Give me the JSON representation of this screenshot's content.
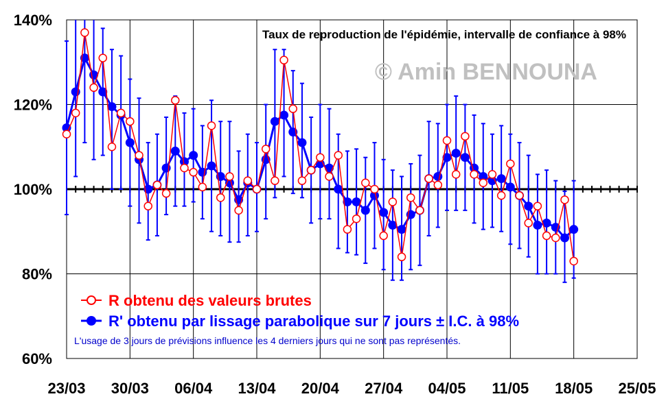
{
  "chart_data": {
    "type": "line",
    "title": "Taux de reproduction de l'épidémie, intervalle de confiance à 98%",
    "watermark": "© Amin BENNOUNA",
    "y_unit": "%",
    "ylim": [
      60,
      140
    ],
    "yticks": [
      "60%",
      "80%",
      "100%",
      "120%",
      "140%"
    ],
    "ytick_values": [
      60,
      80,
      100,
      120,
      140
    ],
    "x_start_date": "2020-03-23",
    "xticks": [
      "23/03",
      "30/03",
      "06/04",
      "13/04",
      "20/04",
      "27/04",
      "04/05",
      "11/05",
      "18/05",
      "25/05"
    ],
    "xlim": [
      "2020-03-23",
      "2020-05-25"
    ],
    "reference_line": 100,
    "grid": true,
    "legend_position": "bottom-left",
    "legend": {
      "raw_label": "R obtenu des valeurs brutes",
      "smooth_label": "R' obtenu par lissage parabolique sur 7 jours ± I.C. à 98%",
      "note": "L'usage de 3 jours de prévisions influence les 4 derniers jours qui ne sont pas représentés."
    },
    "colors": {
      "raw": "#ff0000",
      "smooth": "#0000ff",
      "reference": "#000000",
      "grid": "#000000"
    },
    "series": [
      {
        "name": "R obtenu des valeurs brutes",
        "values": [
          113,
          118,
          137,
          124,
          131,
          110,
          118,
          116,
          108,
          96,
          101,
          99,
          121,
          105,
          104,
          100.5,
          115,
          98,
          103,
          95,
          102,
          100,
          109.5,
          102,
          130.5,
          119,
          102,
          104.5,
          107.5,
          103,
          108,
          90.5,
          93,
          101.5,
          100,
          89,
          97,
          84,
          98,
          95,
          102.5,
          101,
          111.5,
          103.5,
          112.5,
          103.5,
          101.5,
          103.5,
          98.5,
          106,
          98.5,
          92,
          96,
          89,
          88.5,
          97.5,
          83
        ]
      },
      {
        "name": "R' obtenu par lissage parabolique sur 7 jours ± I.C. à 98%",
        "values": [
          114.5,
          123,
          131,
          127,
          123,
          119.5,
          117.5,
          111,
          107,
          100,
          101,
          105,
          109,
          106.5,
          108,
          104,
          105.5,
          103,
          101.5,
          97.5,
          101.5,
          100,
          107,
          116,
          117.5,
          113.5,
          111,
          104.5,
          106,
          105,
          100,
          97,
          97,
          95,
          98.5,
          94.5,
          91.5,
          90.5,
          94,
          95,
          102.5,
          103,
          107.5,
          108.5,
          107.5,
          105,
          103,
          102,
          102.5,
          100.5,
          98.5,
          96,
          91.5,
          92,
          91,
          88.5,
          90.5
        ],
        "ci_low": [
          94,
          103,
          111,
          107,
          108,
          100,
          100,
          96,
          92,
          88,
          89,
          94,
          96,
          96,
          97,
          93,
          90,
          89,
          87.5,
          87.5,
          89,
          90,
          93,
          98,
          103,
          99,
          98,
          92,
          93,
          93,
          86,
          85,
          84.5,
          82.5,
          86,
          81,
          78.5,
          78.5,
          81,
          82,
          89,
          91,
          95,
          95,
          95,
          92,
          90.5,
          91,
          90,
          87,
          86,
          84,
          80,
          80,
          80,
          78,
          79
        ],
        "ci_high": [
          135,
          142,
          142,
          142,
          138,
          133,
          131.5,
          126,
          121.5,
          111,
          113,
          117,
          122,
          118,
          119,
          115,
          121,
          116,
          116,
          109,
          113,
          111,
          120,
          133,
          133,
          128,
          125,
          117,
          120,
          119,
          113,
          109,
          109.5,
          107.5,
          111,
          107,
          104.5,
          103,
          106,
          108,
          116,
          115.5,
          120,
          122,
          120,
          117.5,
          115.5,
          113,
          115,
          113,
          111,
          108,
          103.5,
          104.5,
          102,
          99.5,
          102
        ]
      }
    ]
  }
}
